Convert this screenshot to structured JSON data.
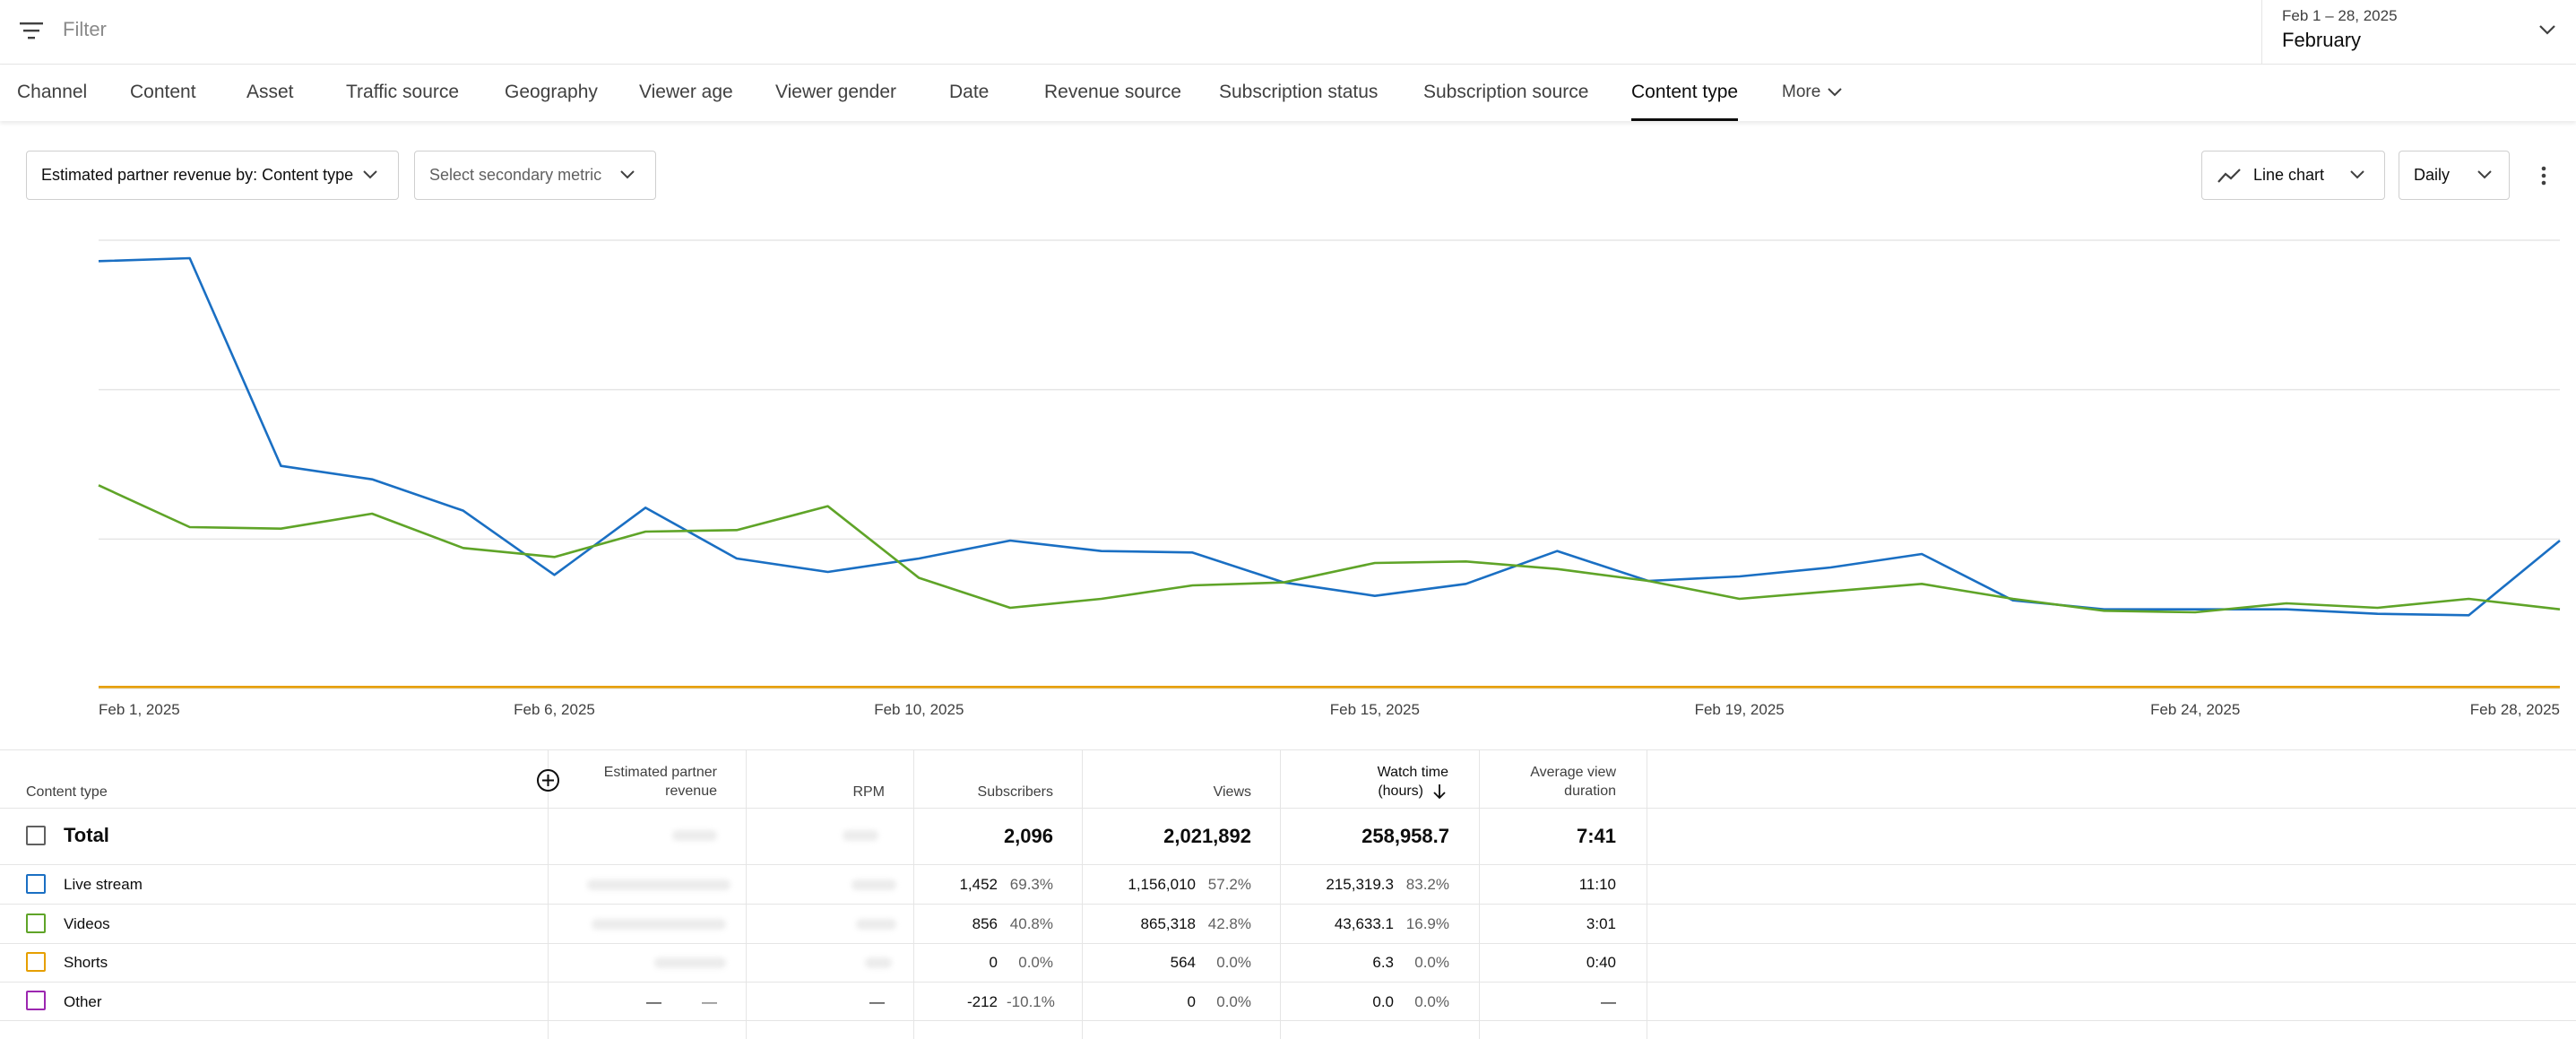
{
  "filter": {
    "placeholder": "Filter",
    "icon": "filter-icon"
  },
  "date_picker": {
    "range": "Feb 1 – 28, 2025",
    "label": "February"
  },
  "tabs": [
    {
      "label": "Channel"
    },
    {
      "label": "Content"
    },
    {
      "label": "Asset"
    },
    {
      "label": "Traffic source"
    },
    {
      "label": "Geography"
    },
    {
      "label": "Viewer age"
    },
    {
      "label": "Viewer gender"
    },
    {
      "label": "Date"
    },
    {
      "label": "Revenue source"
    },
    {
      "label": "Subscription status"
    },
    {
      "label": "Subscription source"
    },
    {
      "label": "Content type"
    },
    {
      "label": "More"
    }
  ],
  "active_tab": "Content type",
  "controls": {
    "primary_metric": "Estimated partner revenue by: Content type",
    "secondary_metric": "Select secondary metric",
    "chart_type": "Line chart",
    "interval": "Daily"
  },
  "chart_data": {
    "type": "line",
    "x_ticks": [
      "Feb 1, 2025",
      "Feb 6, 2025",
      "Feb 10, 2025",
      "Feb 15, 2025",
      "Feb 19, 2025",
      "Feb 24, 2025",
      "Feb 28, 2025"
    ],
    "x_tick_days": [
      1,
      6,
      10,
      15,
      19,
      24,
      28
    ],
    "x": [
      1,
      2,
      3,
      4,
      5,
      6,
      7,
      8,
      9,
      10,
      11,
      12,
      13,
      14,
      15,
      16,
      17,
      18,
      19,
      20,
      21,
      22,
      23,
      24,
      25,
      26,
      27,
      28
    ],
    "ylim": [
      0,
      3
    ],
    "y_axis_labels_hidden": true,
    "grid": true,
    "series": [
      {
        "name": "Live stream",
        "color": "#1a6fc3",
        "values": [
          2.86,
          2.88,
          1.49,
          1.4,
          1.19,
          0.76,
          1.21,
          0.87,
          0.78,
          0.87,
          0.99,
          0.92,
          0.91,
          0.71,
          0.62,
          0.7,
          0.92,
          0.72,
          0.75,
          0.81,
          0.9,
          0.59,
          0.53,
          0.53,
          0.53,
          0.5,
          0.49,
          0.99
        ]
      },
      {
        "name": "Videos",
        "color": "#5fa428",
        "values": [
          1.36,
          1.08,
          1.07,
          1.17,
          0.94,
          0.88,
          1.05,
          1.06,
          1.22,
          0.74,
          0.54,
          0.6,
          0.69,
          0.71,
          0.84,
          0.85,
          0.8,
          0.72,
          0.6,
          0.65,
          0.7,
          0.6,
          0.52,
          0.51,
          0.57,
          0.54,
          0.6,
          0.53
        ]
      },
      {
        "name": "Shorts",
        "color": "#e69f00",
        "values": [
          0.01,
          0.01,
          0.01,
          0.01,
          0.01,
          0.01,
          0.01,
          0.01,
          0.01,
          0.01,
          0.01,
          0.01,
          0.01,
          0.01,
          0.01,
          0.01,
          0.01,
          0.01,
          0.01,
          0.01,
          0.01,
          0.01,
          0.01,
          0.01,
          0.01,
          0.01,
          0.01,
          0.01
        ]
      }
    ]
  },
  "table": {
    "headers": {
      "content_type": "Content type",
      "revenue": [
        "Estimated partner",
        "revenue"
      ],
      "rpm": "RPM",
      "subscribers": "Subscribers",
      "views": "Views",
      "watch_time": [
        "Watch time",
        "(hours)"
      ],
      "avg_view": [
        "Average view",
        "duration"
      ]
    },
    "total": {
      "label": "Total",
      "subscribers": "2,096",
      "views": "2,021,892",
      "watch_time": "258,958.7",
      "avg_view": "7:41"
    },
    "rows": [
      {
        "label": "Live stream",
        "color": "#1a6fc3",
        "revenue": "",
        "rpm": "",
        "subscribers": "1,452",
        "subscribers_pct": "69.3%",
        "views": "1,156,010",
        "views_pct": "57.2%",
        "watch_time": "215,319.3",
        "watch_time_pct": "83.2%",
        "avg_view": "11:10"
      },
      {
        "label": "Videos",
        "color": "#5fa428",
        "revenue": "",
        "rpm": "",
        "subscribers": "856",
        "subscribers_pct": "40.8%",
        "views": "865,318",
        "views_pct": "42.8%",
        "watch_time": "43,633.1",
        "watch_time_pct": "16.9%",
        "avg_view": "3:01"
      },
      {
        "label": "Shorts",
        "color": "#e69f00",
        "revenue": "",
        "rpm": "",
        "subscribers": "0",
        "subscribers_pct": "0.0%",
        "views": "564",
        "views_pct": "0.0%",
        "watch_time": "6.3",
        "watch_time_pct": "0.0%",
        "avg_view": "0:40"
      },
      {
        "label": "Other",
        "color": "#9c27b0",
        "revenue": "—",
        "revenue_pct": "—",
        "rpm": "—",
        "subscribers": "-212",
        "subscribers_pct": "-10.1%",
        "views": "0",
        "views_pct": "0.0%",
        "watch_time": "0.0",
        "watch_time_pct": "0.0%",
        "avg_view": "—"
      }
    ]
  }
}
